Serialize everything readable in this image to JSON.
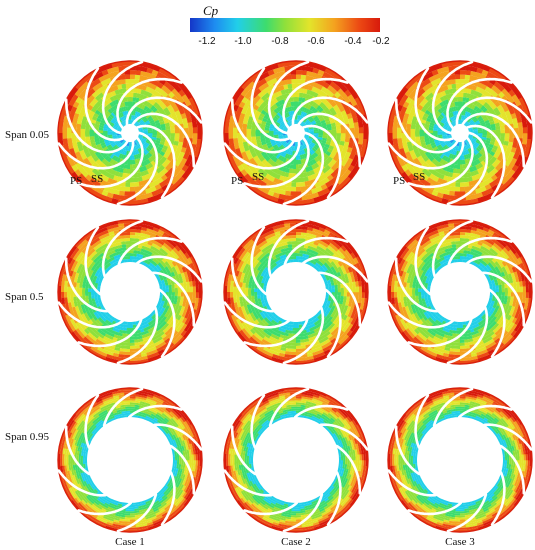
{
  "colorbar": {
    "title": "Cp",
    "ticks": [
      "-1.2",
      "-1.0",
      "-0.8",
      "-0.6",
      "-0.4",
      "-0.2"
    ],
    "range": [
      -1.25,
      -0.2
    ],
    "colors": [
      "#1436c8",
      "#1e8cf0",
      "#21cfe9",
      "#3ddc6e",
      "#8fe03b",
      "#e3e42b",
      "#f4a21f",
      "#ec4a14",
      "#d81a0c"
    ]
  },
  "row_labels": [
    "Span 0.05",
    "Span 0.5",
    "Span 0.95"
  ],
  "column_labels": [
    "Case 1",
    "Case 2",
    "Case 3"
  ],
  "blade_labels": {
    "pressure_side": "PS",
    "suction_side": "SS"
  },
  "impeller": {
    "blade_count": 10
  }
}
